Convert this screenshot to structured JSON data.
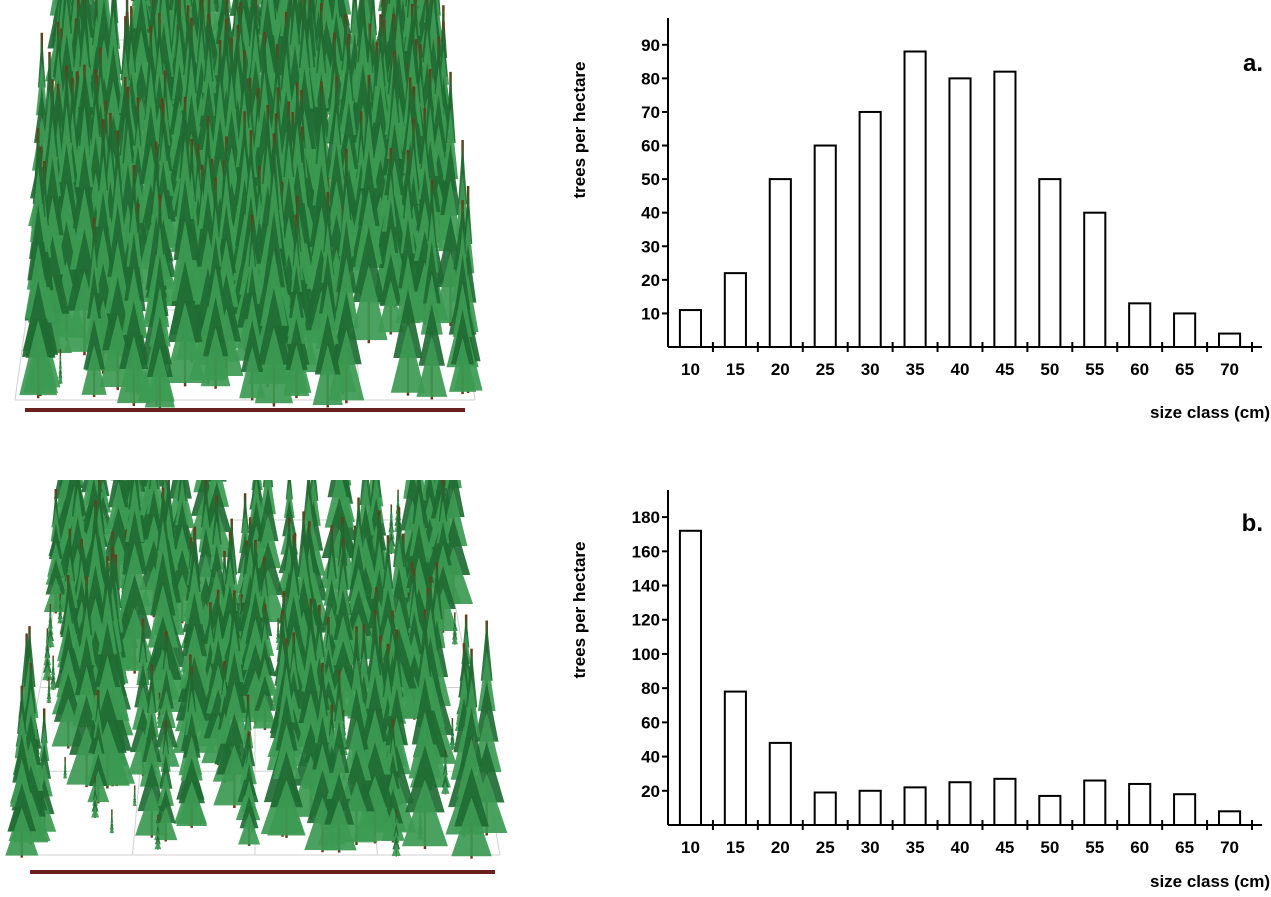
{
  "colors": {
    "foliage": "#3c9a52",
    "foliage_dark": "#1f6b33",
    "trunk": "#6b3a1a",
    "ground_line": "#6b1f1f",
    "grid": "#d0d0d0",
    "bars": "#000000"
  },
  "chart_data": [
    {
      "type": "bar",
      "panel_label": "a.",
      "categories": [
        "10",
        "15",
        "20",
        "25",
        "30",
        "35",
        "40",
        "45",
        "50",
        "55",
        "60",
        "65",
        "70"
      ],
      "values": [
        11,
        22,
        50,
        60,
        70,
        88,
        80,
        82,
        50,
        40,
        13,
        10,
        4
      ],
      "ylabel": "trees per hectare",
      "xlabel": "size class (cm)",
      "ylim": [
        0,
        95
      ],
      "yticks": [
        10,
        20,
        30,
        40,
        50,
        60,
        70,
        80,
        90
      ],
      "bar_fill": "none",
      "grid": false
    },
    {
      "type": "bar",
      "panel_label": "b.",
      "categories": [
        "10",
        "15",
        "20",
        "25",
        "30",
        "35",
        "40",
        "45",
        "50",
        "55",
        "60",
        "65",
        "70"
      ],
      "values": [
        172,
        78,
        48,
        19,
        20,
        22,
        25,
        27,
        17,
        26,
        24,
        18,
        8
      ],
      "ylabel": "trees per hectare",
      "xlabel": "size class (cm)",
      "ylim": [
        0,
        190
      ],
      "yticks": [
        20,
        40,
        60,
        80,
        100,
        120,
        140,
        160,
        180
      ],
      "bar_fill": "none",
      "grid": false
    }
  ]
}
